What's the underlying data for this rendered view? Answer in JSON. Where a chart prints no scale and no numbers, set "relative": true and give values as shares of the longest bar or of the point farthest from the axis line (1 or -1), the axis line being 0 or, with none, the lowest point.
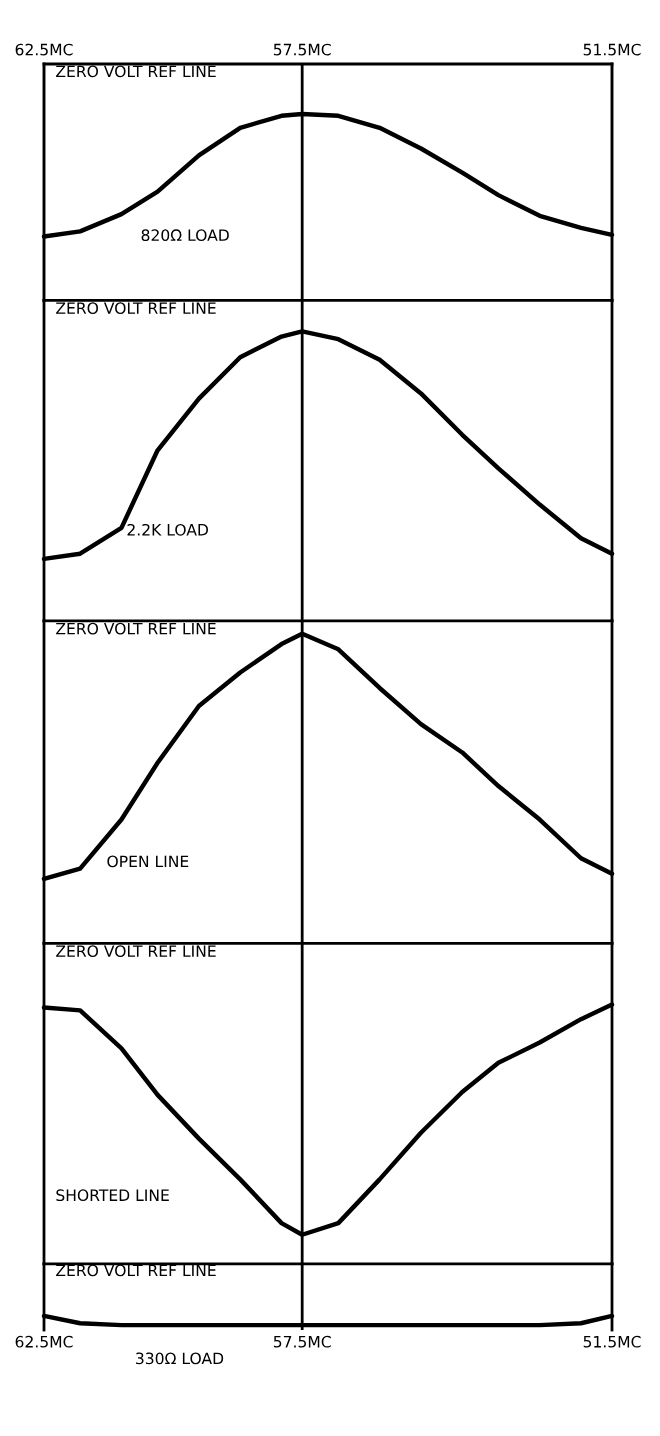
{
  "chart_data": [
    {
      "type": "line",
      "relative": true,
      "xlim": [
        62.5,
        51.5
      ],
      "x2lim": [
        62.5,
        51.5
      ],
      "x2ticks": [
        {
          "value": 62.5,
          "label": "62.5MC"
        },
        {
          "value": 57.5,
          "label": "57.5MC"
        },
        {
          "value": 51.5,
          "label": "51.5MC"
        }
      ],
      "x": [
        62.5,
        61.8,
        61.0,
        60.3,
        59.5,
        58.7,
        57.9,
        57.5,
        56.8,
        56.0,
        55.2,
        54.4,
        53.7,
        52.9,
        52.1,
        51.5
      ],
      "series": [
        {
          "name": "820Ω LOAD",
          "color": "#000000",
          "values": [
            -1,
            -0.97,
            -0.87,
            -0.74,
            -0.53,
            -0.37,
            -0.3,
            -0.29,
            -0.3,
            -0.37,
            -0.49,
            -0.63,
            -0.76,
            -0.88,
            -0.95,
            -0.99
          ]
        }
      ],
      "annotations": [
        "ZERO VOLT REF LINE"
      ],
      "ref_lines": [
        {
          "axis": "x",
          "value": 57.5
        }
      ]
    },
    {
      "type": "line",
      "relative": true,
      "xlim": [
        62.5,
        51.5
      ],
      "x": [
        62.5,
        61.8,
        61.0,
        60.3,
        59.5,
        58.7,
        57.9,
        57.5,
        56.8,
        56.0,
        55.2,
        54.4,
        53.7,
        52.9,
        52.1,
        51.5
      ],
      "series": [
        {
          "name": "2.2K LOAD",
          "color": "#000000",
          "values": [
            -1,
            -0.98,
            -0.88,
            -0.58,
            -0.38,
            -0.22,
            -0.14,
            -0.12,
            -0.15,
            -0.23,
            -0.36,
            -0.52,
            -0.65,
            -0.79,
            -0.92,
            -0.98
          ]
        }
      ],
      "annotations": [
        "ZERO VOLT REF LINE"
      ],
      "ref_lines": [
        {
          "axis": "x",
          "value": 57.5
        }
      ]
    },
    {
      "type": "line",
      "relative": true,
      "xlim": [
        62.5,
        51.5
      ],
      "x": [
        62.5,
        61.8,
        61.0,
        60.3,
        59.5,
        58.7,
        57.9,
        57.5,
        56.8,
        56.0,
        55.2,
        54.4,
        53.7,
        52.9,
        52.1,
        51.5
      ],
      "series": [
        {
          "name": "OPEN LINE",
          "color": "#000000",
          "values": [
            -1,
            -0.96,
            -0.77,
            -0.55,
            -0.33,
            -0.2,
            -0.09,
            -0.05,
            -0.11,
            -0.26,
            -0.4,
            -0.51,
            -0.64,
            -0.77,
            -0.92,
            -0.98
          ]
        }
      ],
      "annotations": [
        "ZERO VOLT REF LINE"
      ],
      "ref_lines": [
        {
          "axis": "x",
          "value": 57.5
        }
      ]
    },
    {
      "type": "line",
      "relative": true,
      "xlim": [
        62.5,
        51.5
      ],
      "x": [
        62.5,
        61.8,
        61.0,
        60.3,
        59.5,
        58.7,
        57.9,
        57.5,
        56.8,
        56.0,
        55.2,
        54.4,
        53.7,
        52.9,
        52.1,
        51.5
      ],
      "series": [
        {
          "name": "SHORTED LINE",
          "color": "#000000",
          "values": [
            -0.22,
            -0.23,
            -0.36,
            -0.52,
            -0.67,
            -0.81,
            -0.96,
            -1,
            -0.96,
            -0.81,
            -0.65,
            -0.51,
            -0.41,
            -0.34,
            -0.26,
            -0.21
          ]
        }
      ],
      "annotations": [
        "ZERO VOLT REF LINE"
      ],
      "ref_lines": [
        {
          "axis": "x",
          "value": 57.5
        }
      ]
    },
    {
      "type": "line",
      "relative": true,
      "xlim": [
        62.5,
        51.5
      ],
      "xticks": [
        {
          "value": 62.5,
          "label": "62.5MC"
        },
        {
          "value": 57.5,
          "label": "57.5MC"
        },
        {
          "value": 51.5,
          "label": "51.5MC"
        }
      ],
      "x": [
        62.5,
        61.8,
        61.0,
        60.3,
        59.5,
        58.7,
        57.9,
        57.5,
        56.8,
        56.0,
        55.2,
        54.4,
        53.7,
        52.9,
        52.1,
        51.5
      ],
      "series": [
        {
          "name": "330Ω LOAD",
          "color": "#000000",
          "values": [
            -0.85,
            -0.97,
            -1,
            -1,
            -1,
            -1,
            -1,
            -1,
            -1,
            -1,
            -1,
            -1,
            -1,
            -1,
            -0.97,
            -0.85
          ]
        }
      ],
      "annotations": [
        "ZERO VOLT REF LINE"
      ],
      "ref_lines": [
        {
          "axis": "x",
          "value": 57.5
        }
      ]
    }
  ]
}
